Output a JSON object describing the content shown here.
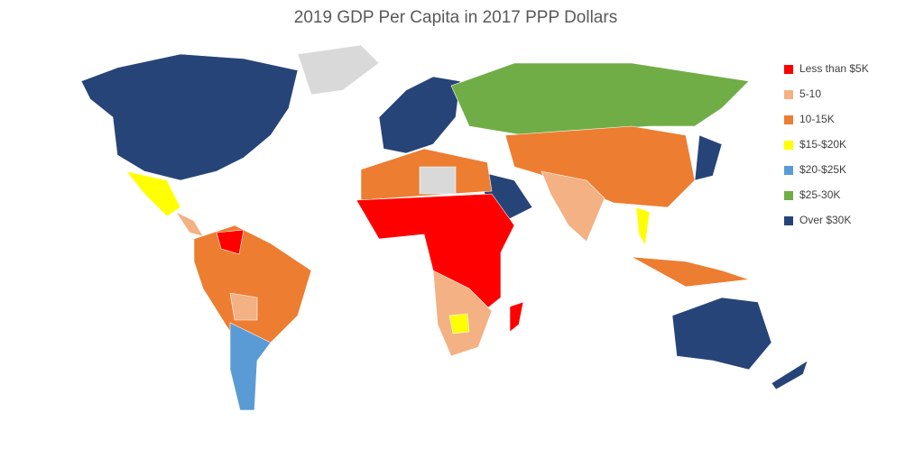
{
  "title": "2019 GDP Per Capita in 2017 PPP Dollars",
  "legend": [
    {
      "name": "Less than $5K",
      "color": "#ff0000"
    },
    {
      "name": "5-10",
      "color": "#f4b183"
    },
    {
      "name": "10-15K",
      "color": "#ed7d31"
    },
    {
      "name": "$15-$20K",
      "color": "#ffff00"
    },
    {
      "name": "$20-$25K",
      "color": "#5b9bd5"
    },
    {
      "name": "$25-30K",
      "color": "#70ad47"
    },
    {
      "name": "Over $30K",
      "color": "#264478"
    }
  ],
  "no_data_color": "#d9d9d9"
}
